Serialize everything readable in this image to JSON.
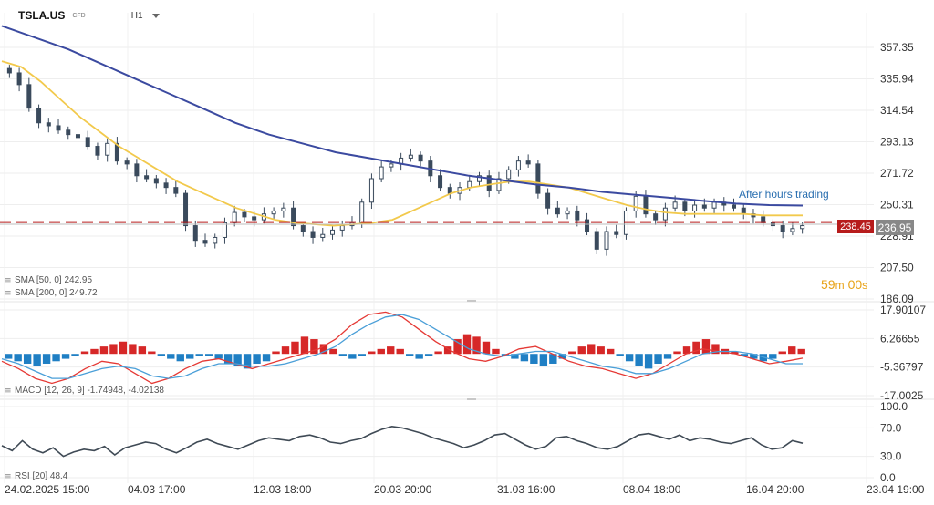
{
  "header": {
    "symbol": "TSLA.US",
    "symbol_sub": "CFD",
    "timeframe": "H1"
  },
  "colors": {
    "up_candle": "#3a4a5c",
    "down_candle": "#3a4a5c",
    "sma50": "#f2c94c",
    "sma200": "#3b4aa0",
    "dashed_level": "#b71c1c",
    "macd_pos": "#d62828",
    "macd_neg": "#1f7fc4",
    "macd_line": "#e53935",
    "signal_line": "#4a9fd8",
    "rsi_line": "#3f4a55",
    "countdown": "#e8a317",
    "after_hours": "#2a6fb0"
  },
  "chart_data": [
    {
      "type": "candlestick",
      "panel": "price",
      "y_ticks": [
        "357.35",
        "335.94",
        "314.54",
        "293.13",
        "271.72",
        "250.31",
        "228.91",
        "207.50",
        "186.09"
      ],
      "ylim": [
        186.09,
        357.35
      ],
      "x_ticks": [
        "24.02.2025 15:00",
        "04.03 17:00",
        "12.03 18:00",
        "20.03 20:00",
        "31.03 16:00",
        "08.04 18:00",
        "16.04 20:00",
        "23.04 19:00"
      ],
      "close_path": [
        340,
        332,
        316,
        306,
        304,
        301,
        298,
        296,
        290,
        284,
        292,
        280,
        278,
        270,
        268,
        265,
        262,
        258,
        236,
        226,
        224,
        228,
        238,
        245,
        242,
        240,
        244,
        246,
        248,
        236,
        232,
        228,
        230,
        233,
        236,
        238,
        252,
        268,
        276,
        278,
        282,
        284,
        280,
        270,
        262,
        258,
        262,
        266,
        270,
        260,
        268,
        274,
        280,
        278,
        258,
        248,
        244,
        246,
        240,
        232,
        220,
        232,
        230,
        246,
        256,
        244,
        240,
        248,
        252,
        246,
        250,
        248,
        252,
        250,
        248,
        244,
        242,
        238,
        236,
        232,
        234,
        236
      ],
      "sma50_path": [
        348,
        344,
        334,
        322,
        310,
        300,
        290,
        282,
        274,
        266,
        260,
        254,
        248,
        244,
        240,
        238,
        237,
        236,
        237,
        238,
        240,
        246,
        252,
        258,
        262,
        264,
        266,
        266,
        264,
        262,
        258,
        254,
        250,
        247,
        245,
        244,
        244,
        244,
        244,
        243,
        243,
        243
      ],
      "sma200_path": [
        372,
        364,
        356,
        346,
        336,
        326,
        316,
        306,
        298,
        292,
        286,
        282,
        278,
        274,
        270,
        267,
        264,
        262,
        259,
        257,
        255,
        253,
        251,
        250,
        249.72
      ],
      "labels": {
        "after_hours": "After hours trading",
        "countdown_min": "59",
        "countdown_m": "m",
        "countdown_sec": "00",
        "countdown_s": "s",
        "level_price": "238.45",
        "last_price": "236.95"
      },
      "levels": {
        "dashed": 238.45,
        "last": 236.95
      },
      "legend": [
        {
          "name": "SMA [50, 0] 242.95"
        },
        {
          "name": "SMA [200, 0] 249.72"
        }
      ]
    },
    {
      "type": "histogram+line",
      "panel": "macd",
      "y_ticks": [
        "17.90107",
        "6.26655",
        "-5.36797",
        "-17.0025"
      ],
      "ylim": [
        -17.0025,
        17.90107
      ],
      "histogram": [
        -2,
        -3,
        -4,
        -5,
        -4,
        -3,
        -2,
        -1,
        1,
        2,
        3,
        4,
        5,
        4,
        3,
        1,
        -1,
        -2,
        -3,
        -2,
        -1,
        -1,
        -2,
        -4,
        -5,
        -6,
        -4,
        -3,
        1,
        3,
        5,
        7,
        6,
        4,
        2,
        -1,
        -2,
        -1,
        1,
        2,
        3,
        2,
        -1,
        -2,
        -1,
        1,
        3,
        6,
        8,
        7,
        5,
        2,
        -1,
        -2,
        -3,
        -4,
        -5,
        -4,
        -2,
        1,
        3,
        4,
        3,
        2,
        -1,
        -3,
        -5,
        -6,
        -4,
        -2,
        1,
        3,
        5,
        6,
        4,
        2,
        1,
        -1,
        -2,
        -3,
        -2,
        1,
        3,
        2
      ],
      "macd_line": [
        -3,
        -6,
        -10,
        -12,
        -10,
        -6,
        -3,
        -4,
        -8,
        -12,
        -10,
        -6,
        -3,
        -2,
        -4,
        -6,
        -4,
        -2,
        0,
        2,
        6,
        12,
        16,
        17,
        15,
        10,
        5,
        1,
        -2,
        -3,
        -1,
        2,
        3,
        0,
        -3,
        -5,
        -6,
        -8,
        -10,
        -8,
        -4,
        0,
        2,
        1,
        0,
        -2,
        -4,
        -3,
        -1.75
      ],
      "signal_line": [
        -2,
        -4,
        -7,
        -10,
        -10,
        -8,
        -6,
        -5,
        -6,
        -9,
        -10,
        -9,
        -6,
        -4,
        -4,
        -5,
        -5,
        -4,
        -2,
        0,
        3,
        8,
        12,
        15,
        16,
        14,
        10,
        6,
        2,
        0,
        -1,
        0,
        1,
        1,
        -1,
        -3,
        -5,
        -6,
        -8,
        -8,
        -6,
        -3,
        0,
        1,
        1,
        0,
        -2,
        -4,
        -4.02
      ],
      "legend": [
        {
          "name": "MACD [12, 26, 9] -1.74948, -4.02138"
        }
      ]
    },
    {
      "type": "line",
      "panel": "rsi",
      "y_ticks": [
        "100.0",
        "70.0",
        "30.0",
        "0.0"
      ],
      "ylim": [
        0,
        100
      ],
      "values": [
        45,
        38,
        52,
        40,
        35,
        42,
        30,
        36,
        40,
        38,
        44,
        32,
        42,
        46,
        50,
        48,
        40,
        35,
        42,
        50,
        54,
        48,
        44,
        40,
        46,
        52,
        56,
        54,
        52,
        58,
        60,
        56,
        50,
        48,
        52,
        55,
        62,
        68,
        72,
        70,
        66,
        62,
        56,
        52,
        48,
        42,
        46,
        52,
        60,
        62,
        54,
        46,
        40,
        44,
        56,
        58,
        52,
        48,
        42,
        40,
        44,
        52,
        60,
        62,
        58,
        54,
        60,
        52,
        56,
        54,
        50,
        48,
        52,
        56,
        46,
        40,
        42,
        52,
        48.4
      ],
      "legend": [
        {
          "name": "RSI [20] 48.4"
        }
      ]
    }
  ]
}
